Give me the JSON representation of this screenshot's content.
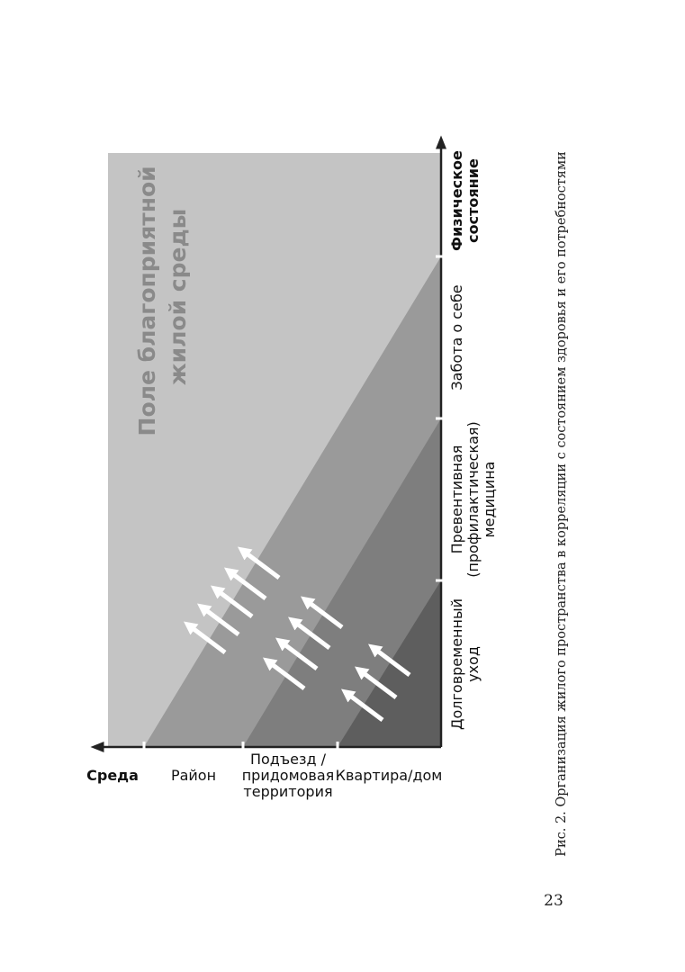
{
  "figure": {
    "field_label": [
      "Поле благоприятной",
      "жилой среды"
    ],
    "y_axis": {
      "title": "Среда",
      "levels": [
        "Район",
        [
          "Подъезд /",
          "придомовая",
          "территория"
        ],
        "Квартира/дом"
      ]
    },
    "x_axis": {
      "categories": [
        [
          "Долговременный",
          "уход"
        ],
        [
          "Превентивная",
          "(профилактическая)",
          "медицина"
        ],
        [
          "Забота о себе"
        ]
      ],
      "title": [
        "Физическое",
        "состояние"
      ]
    }
  },
  "caption": "Рис. 2. Организация жилого пространства в корреляции с состоянием здоровья и его потребностями",
  "page_number": "23"
}
